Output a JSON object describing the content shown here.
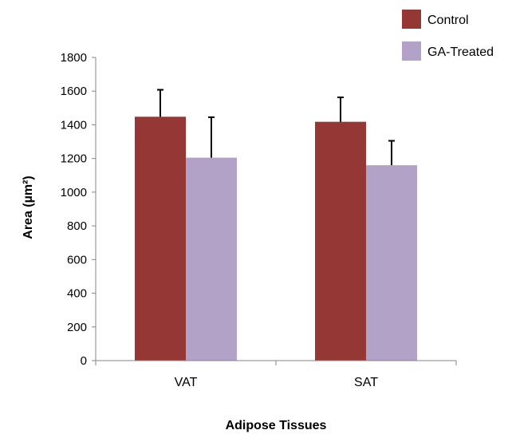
{
  "chart_data": {
    "type": "bar",
    "title": "",
    "xlabel": "Adipose Tissues",
    "ylabel": "Area (µm²)",
    "categories": [
      "VAT",
      "SAT"
    ],
    "ylim": [
      0,
      1800
    ],
    "yticks": [
      0,
      200,
      400,
      600,
      800,
      1000,
      1200,
      1400,
      1600,
      1800
    ],
    "grid": false,
    "legend_position": "top-right",
    "series": [
      {
        "name": "Control",
        "color": "#953735",
        "values": [
          1448,
          1418
        ],
        "error": [
          160,
          145
        ]
      },
      {
        "name": "GA-Treated",
        "color": "#b3a2c7",
        "values": [
          1205,
          1160
        ],
        "error": [
          240,
          145
        ]
      }
    ]
  }
}
